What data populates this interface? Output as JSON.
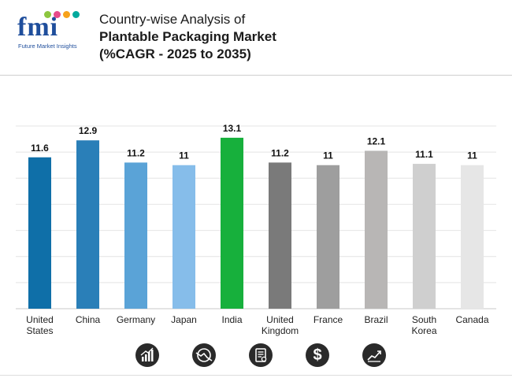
{
  "brand": {
    "logo_text": "fmi",
    "logo_subtitle": "Future Market Insights",
    "dot_colors": [
      "#8dc63f",
      "#e84b8a",
      "#f7a21b",
      "#00a99d"
    ]
  },
  "title": {
    "line1": "Country-wise Analysis of",
    "line2": "Plantable Packaging Market",
    "line3": "(%CAGR - 2025 to 2035)"
  },
  "chart_data": {
    "type": "bar",
    "title": "Country-wise Analysis of Plantable Packaging Market (%CAGR - 2025 to 2035)",
    "xlabel": "",
    "ylabel": "",
    "ylim": [
      0,
      14
    ],
    "grid": true,
    "legend": "none",
    "categories": [
      [
        "United",
        "States"
      ],
      [
        "China"
      ],
      [
        "Germany"
      ],
      [
        "Japan"
      ],
      [
        "India"
      ],
      [
        "United",
        "Kingdom"
      ],
      [
        "France"
      ],
      [
        "Brazil"
      ],
      [
        "South",
        "Korea"
      ],
      [
        "Canada"
      ]
    ],
    "values": [
      11.6,
      12.9,
      11.2,
      11,
      13.1,
      11.2,
      11,
      12.1,
      11.1,
      11
    ],
    "value_labels": [
      "11.6",
      "12.9",
      "11.2",
      "11",
      "13.1",
      "11.2",
      "11",
      "12.1",
      "11.1",
      "11"
    ],
    "colors": [
      "#0f6fa8",
      "#2a7fb8",
      "#5aa3d7",
      "#86bdea",
      "#17b03c",
      "#7a7a7a",
      "#9e9e9e",
      "#b8b6b5",
      "#cfcfcf",
      "#e6e6e6"
    ]
  },
  "footer_icons": [
    "bar-chart-icon",
    "trend-circle-icon",
    "document-icon",
    "dollar-icon",
    "growth-chart-icon"
  ]
}
